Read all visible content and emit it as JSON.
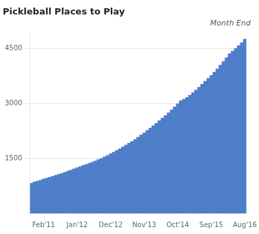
{
  "chart_data": {
    "type": "bar",
    "title": "Pickleball Places to Play",
    "subtitle": "Month End",
    "categories": [
      null,
      null,
      null,
      null,
      "Feb'11",
      null,
      null,
      null,
      null,
      null,
      null,
      null,
      null,
      null,
      null,
      "Jan'12",
      null,
      null,
      null,
      null,
      null,
      null,
      null,
      null,
      null,
      null,
      "Dec'12",
      null,
      null,
      null,
      null,
      null,
      null,
      null,
      null,
      null,
      null,
      "Nov'13",
      null,
      null,
      null,
      null,
      null,
      null,
      null,
      null,
      null,
      null,
      "Oct'14",
      null,
      null,
      null,
      null,
      null,
      null,
      null,
      null,
      null,
      null,
      "Sep'15",
      null,
      null,
      null,
      null,
      null,
      null,
      null,
      null,
      null,
      null,
      "Aug'16"
    ],
    "values": [
      820,
      855,
      880,
      905,
      935,
      960,
      985,
      1010,
      1040,
      1065,
      1090,
      1120,
      1150,
      1180,
      1215,
      1245,
      1275,
      1305,
      1335,
      1365,
      1395,
      1430,
      1465,
      1500,
      1540,
      1580,
      1625,
      1670,
      1715,
      1760,
      1810,
      1860,
      1910,
      1960,
      2015,
      2075,
      2135,
      2195,
      2260,
      2325,
      2390,
      2455,
      2525,
      2595,
      2665,
      2740,
      2820,
      2900,
      2985,
      3070,
      3110,
      3160,
      3220,
      3290,
      3360,
      3440,
      3520,
      3600,
      3680,
      3760,
      3850,
      3940,
      4040,
      4140,
      4245,
      4350,
      4420,
      4490,
      4570,
      4650,
      4750
    ],
    "color": "#4f7ec9",
    "ylim": [
      0,
      4900
    ],
    "yticks": [
      1500,
      3000,
      4500
    ],
    "grid": true
  }
}
